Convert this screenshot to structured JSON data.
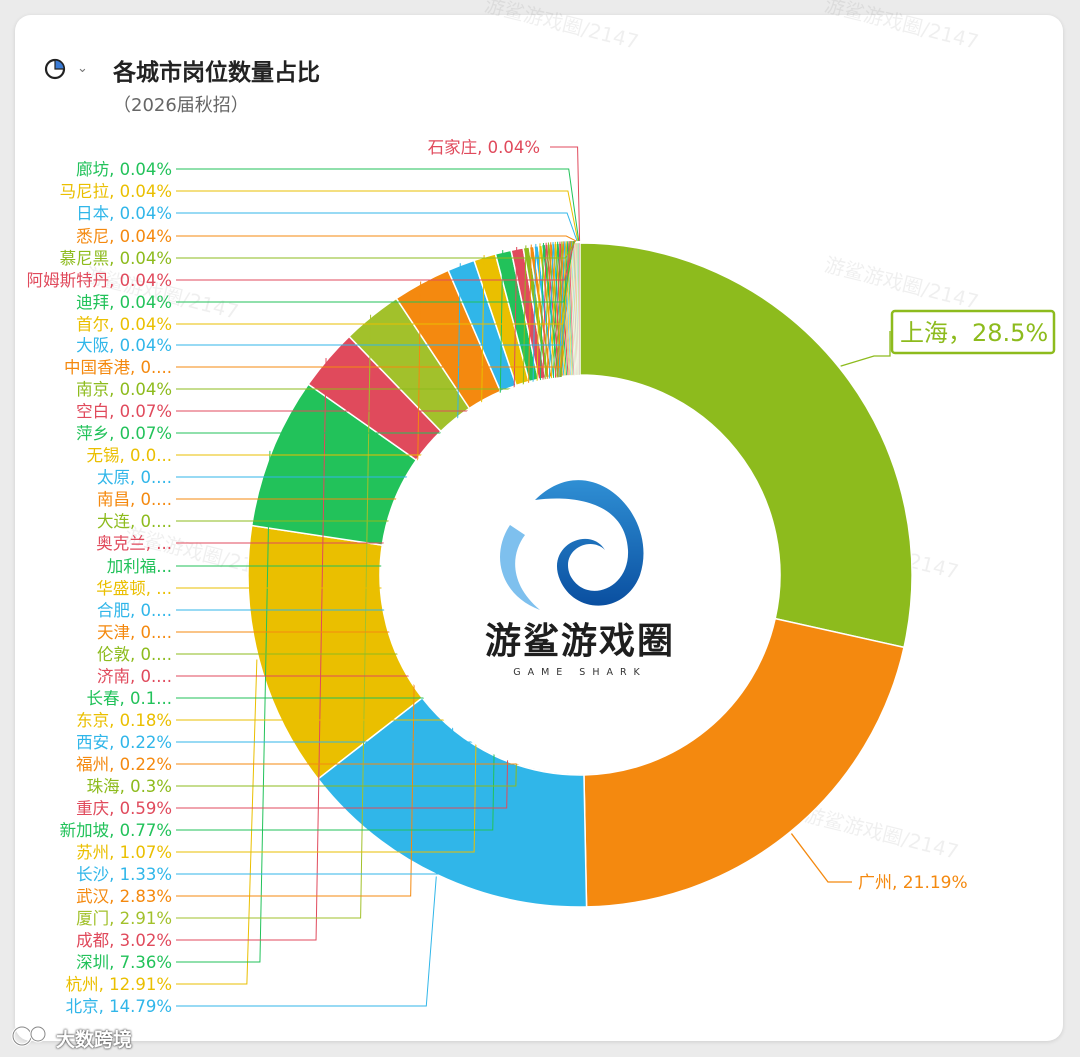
{
  "header": {
    "title": "各城市岗位数量占比",
    "subtitle": "（2026届秋招）"
  },
  "watermark": {
    "text": "游鲨游戏圈/2147"
  },
  "logo": {
    "name": "游鲨游戏圈",
    "tagline": "GAME SHARK"
  },
  "footer": {
    "source": "大数跨境"
  },
  "colors": {
    "green": "#8dbb1d",
    "orange": "#f4890f",
    "blue": "#30b6e9",
    "yellow": "#eabf00",
    "green2": "#22c25a",
    "red": "#e04a5c",
    "lightgreen": "#a2c12b"
  },
  "chart_data": {
    "type": "pie",
    "title": "各城市岗位数量占比",
    "subtitle": "（2026届秋招）",
    "slices": [
      {
        "label": "上海，28.5%",
        "name": "上海",
        "value": 28.5,
        "color": "#8dbb1d"
      },
      {
        "label": "广州, 21.19%",
        "name": "广州",
        "value": 21.19,
        "color": "#f4890f"
      },
      {
        "label": "北京, 14.79%",
        "name": "北京",
        "value": 14.79,
        "color": "#30b6e9"
      },
      {
        "label": "杭州, 12.91%",
        "name": "杭州",
        "value": 12.91,
        "color": "#eabf00"
      },
      {
        "label": "深圳, 7.36%",
        "name": "深圳",
        "value": 7.36,
        "color": "#22c25a"
      },
      {
        "label": "成都, 3.02%",
        "name": "成都",
        "value": 3.02,
        "color": "#e04a5c"
      },
      {
        "label": "厦门, 2.91%",
        "name": "厦门",
        "value": 2.91,
        "color": "#a2c12b"
      },
      {
        "label": "武汉, 2.83%",
        "name": "武汉",
        "value": 2.83,
        "color": "#f4890f"
      },
      {
        "label": "长沙, 1.33%",
        "name": "长沙",
        "value": 1.33,
        "color": "#30b6e9"
      },
      {
        "label": "苏州, 1.07%",
        "name": "苏州",
        "value": 1.07,
        "color": "#eabf00"
      },
      {
        "label": "新加坡, 0.77%",
        "name": "新加坡",
        "value": 0.77,
        "color": "#22c25a"
      },
      {
        "label": "重庆, 0.59%",
        "name": "重庆",
        "value": 0.59,
        "color": "#e04a5c"
      },
      {
        "label": "珠海, 0.3%",
        "name": "珠海",
        "value": 0.3,
        "color": "#8dbb1d"
      },
      {
        "label": "福州, 0.22%",
        "name": "福州",
        "value": 0.22,
        "color": "#f4890f"
      },
      {
        "label": "西安, 0.22%",
        "name": "西安",
        "value": 0.22,
        "color": "#30b6e9"
      },
      {
        "label": "东京, 0.18%",
        "name": "东京",
        "value": 0.18,
        "color": "#eabf00"
      },
      {
        "label": "长春, 0.1...",
        "name": "长春",
        "value": 0.15,
        "color": "#22c25a"
      },
      {
        "label": "济南, 0....",
        "name": "济南",
        "value": 0.11,
        "color": "#e04a5c"
      },
      {
        "label": "伦敦, 0....",
        "name": "伦敦",
        "value": 0.11,
        "color": "#8dbb1d"
      },
      {
        "label": "天津, 0....",
        "name": "天津",
        "value": 0.11,
        "color": "#f4890f"
      },
      {
        "label": "合肥, 0....",
        "name": "合肥",
        "value": 0.11,
        "color": "#30b6e9"
      },
      {
        "label": "华盛顿, ...",
        "name": "华盛顿",
        "value": 0.11,
        "color": "#eabf00"
      },
      {
        "label": "加利福...",
        "name": "加利福",
        "value": 0.11,
        "color": "#22c25a"
      },
      {
        "label": "奥克兰, ...",
        "name": "奥克兰",
        "value": 0.11,
        "color": "#e04a5c"
      },
      {
        "label": "大连, 0....",
        "name": "大连",
        "value": 0.07,
        "color": "#8dbb1d"
      },
      {
        "label": "南昌, 0....",
        "name": "南昌",
        "value": 0.07,
        "color": "#f4890f"
      },
      {
        "label": "太原, 0....",
        "name": "太原",
        "value": 0.07,
        "color": "#30b6e9"
      },
      {
        "label": "无锡, 0.0...",
        "name": "无锡",
        "value": 0.07,
        "color": "#eabf00"
      },
      {
        "label": "萍乡, 0.07%",
        "name": "萍乡",
        "value": 0.07,
        "color": "#22c25a"
      },
      {
        "label": "空白, 0.07%",
        "name": "空白",
        "value": 0.07,
        "color": "#e04a5c"
      },
      {
        "label": "南京, 0.04%",
        "name": "南京",
        "value": 0.04,
        "color": "#8dbb1d"
      },
      {
        "label": "中国香港, 0....",
        "name": "中国香港",
        "value": 0.04,
        "color": "#f4890f"
      },
      {
        "label": "大阪, 0.04%",
        "name": "大阪",
        "value": 0.04,
        "color": "#30b6e9"
      },
      {
        "label": "首尔, 0.04%",
        "name": "首尔",
        "value": 0.04,
        "color": "#eabf00"
      },
      {
        "label": "迪拜, 0.04%",
        "name": "迪拜",
        "value": 0.04,
        "color": "#22c25a"
      },
      {
        "label": "阿姆斯特丹, 0.04%",
        "name": "阿姆斯特丹",
        "value": 0.04,
        "color": "#e04a5c"
      },
      {
        "label": "慕尼黑, 0.04%",
        "name": "慕尼黑",
        "value": 0.04,
        "color": "#8dbb1d"
      },
      {
        "label": "悉尼, 0.04%",
        "name": "悉尼",
        "value": 0.04,
        "color": "#f4890f"
      },
      {
        "label": "日本, 0.04%",
        "name": "日本",
        "value": 0.04,
        "color": "#30b6e9"
      },
      {
        "label": "马尼拉, 0.04%",
        "name": "马尼拉",
        "value": 0.04,
        "color": "#eabf00"
      },
      {
        "label": "廊坊, 0.04%",
        "name": "廊坊",
        "value": 0.04,
        "color": "#22c25a"
      },
      {
        "label": "石家庄, 0.04%",
        "name": "石家庄",
        "value": 0.04,
        "color": "#e04a5c"
      }
    ],
    "inner_radius_ratio": 0.6,
    "start_angle": "12 o'clock, clockwise",
    "legend": "none (outside leader-line labels)",
    "highlight": "上海"
  }
}
